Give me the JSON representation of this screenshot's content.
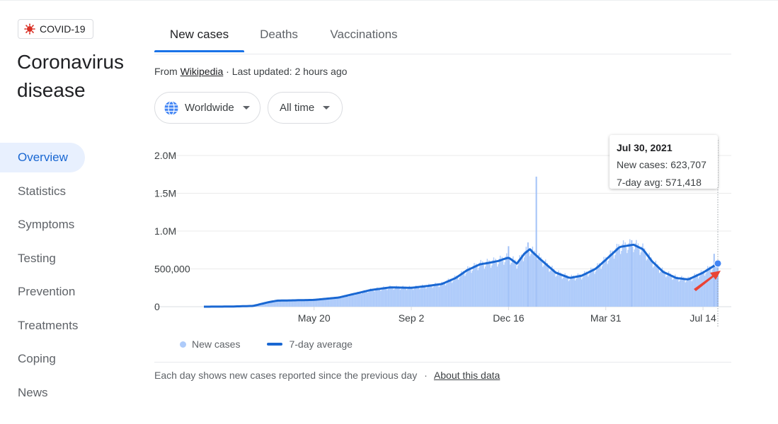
{
  "topic_chip": {
    "label": "COVID-19",
    "icon": "virus-icon",
    "icon_color": "#d93025"
  },
  "page_title": "Coronavirus disease",
  "sidebar": {
    "items": [
      {
        "label": "Overview",
        "active": true
      },
      {
        "label": "Statistics"
      },
      {
        "label": "Symptoms"
      },
      {
        "label": "Testing"
      },
      {
        "label": "Prevention"
      },
      {
        "label": "Treatments"
      },
      {
        "label": "Coping"
      },
      {
        "label": "News"
      }
    ]
  },
  "tabs": [
    {
      "label": "New cases",
      "active": true
    },
    {
      "label": "Deaths"
    },
    {
      "label": "Vaccinations"
    }
  ],
  "source": {
    "prefix": "From ",
    "link": "Wikipedia",
    "suffix": " · Last updated: 2 hours ago"
  },
  "filters": {
    "region": "Worldwide",
    "range": "All time"
  },
  "tooltip": {
    "date": "Jul 30, 2021",
    "new_cases": "New cases: 623,707",
    "avg": "7-day avg: 571,418"
  },
  "legend": {
    "daily": "New cases",
    "avg": "7-day average"
  },
  "footer": {
    "note": "Each day shows new cases reported since the previous day",
    "sep": "·",
    "link": "About this data"
  },
  "colors": {
    "accent": "#1a73e8",
    "avg_line": "#1967d2",
    "bars": "#aecbfa",
    "annotation_arrow": "#ea4335"
  },
  "chart_data": {
    "type": "area",
    "title": "",
    "xlabel": "",
    "ylabel": "",
    "ylim": [
      0,
      2000000
    ],
    "y_ticks": [
      {
        "value": 0,
        "label": "0"
      },
      {
        "value": 500000,
        "label": "500,000"
      },
      {
        "value": 1000000,
        "label": "1.0M"
      },
      {
        "value": 1500000,
        "label": "1.5M"
      },
      {
        "value": 2000000,
        "label": "2.0M"
      }
    ],
    "x_ticks": [
      {
        "date": "2020-05-20",
        "label": "May 20"
      },
      {
        "date": "2020-09-02",
        "label": "Sep 2"
      },
      {
        "date": "2020-12-16",
        "label": "Dec 16"
      },
      {
        "date": "2021-03-31",
        "label": "Mar 31"
      },
      {
        "date": "2021-07-14",
        "label": "Jul 14"
      }
    ],
    "xlim": [
      "2020-01-22",
      "2021-07-30"
    ],
    "grid": true,
    "legend_position": "bottom-left",
    "highlight": {
      "date": "2021-07-30",
      "new_cases": 623707,
      "avg": 571418
    },
    "series": [
      {
        "name": "7-day average",
        "points": [
          [
            "2020-01-22",
            0
          ],
          [
            "2020-02-20",
            2000
          ],
          [
            "2020-03-15",
            10000
          ],
          [
            "2020-04-01",
            60000
          ],
          [
            "2020-04-10",
            80000
          ],
          [
            "2020-05-01",
            85000
          ],
          [
            "2020-05-20",
            90000
          ],
          [
            "2020-06-15",
            120000
          ],
          [
            "2020-07-01",
            165000
          ],
          [
            "2020-07-20",
            220000
          ],
          [
            "2020-08-10",
            255000
          ],
          [
            "2020-09-02",
            250000
          ],
          [
            "2020-09-20",
            275000
          ],
          [
            "2020-10-05",
            300000
          ],
          [
            "2020-10-20",
            380000
          ],
          [
            "2020-11-01",
            480000
          ],
          [
            "2020-11-15",
            560000
          ],
          [
            "2020-11-25",
            580000
          ],
          [
            "2020-12-05",
            605000
          ],
          [
            "2020-12-16",
            650000
          ],
          [
            "2020-12-25",
            570000
          ],
          [
            "2021-01-02",
            700000
          ],
          [
            "2021-01-08",
            760000
          ],
          [
            "2021-01-12",
            710000
          ],
          [
            "2021-01-20",
            620000
          ],
          [
            "2021-02-05",
            450000
          ],
          [
            "2021-02-20",
            380000
          ],
          [
            "2021-03-05",
            410000
          ],
          [
            "2021-03-20",
            500000
          ],
          [
            "2021-03-31",
            620000
          ],
          [
            "2021-04-15",
            790000
          ],
          [
            "2021-04-30",
            820000
          ],
          [
            "2021-05-10",
            760000
          ],
          [
            "2021-05-20",
            600000
          ],
          [
            "2021-06-01",
            460000
          ],
          [
            "2021-06-15",
            380000
          ],
          [
            "2021-06-28",
            360000
          ],
          [
            "2021-07-14",
            450000
          ],
          [
            "2021-07-30",
            571418
          ]
        ]
      },
      {
        "name": "New cases",
        "spikes": [
          [
            "2020-12-16",
            800000
          ],
          [
            "2021-01-06",
            850000
          ],
          [
            "2021-01-15",
            1720000
          ],
          [
            "2021-04-28",
            880000
          ],
          [
            "2021-07-26",
            700000
          ],
          [
            "2021-07-30",
            623707
          ]
        ]
      }
    ]
  }
}
